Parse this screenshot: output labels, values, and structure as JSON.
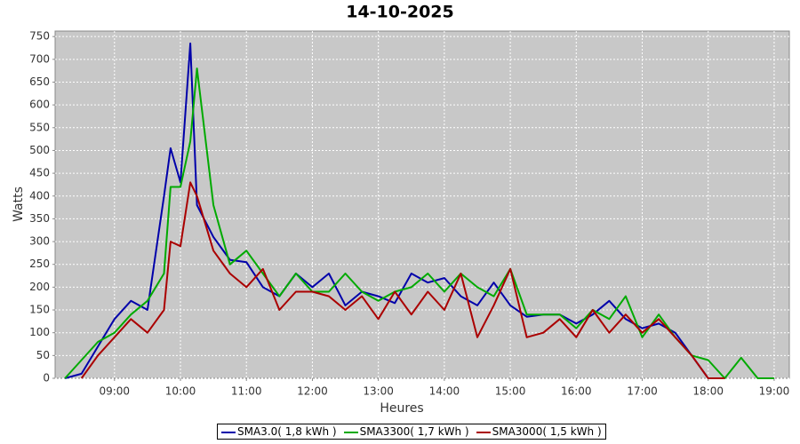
{
  "chart_data": {
    "type": "line",
    "title": "14-10-2025",
    "x_label": "Heures",
    "y_label": "Watts",
    "x": [
      8.25,
      8.5,
      8.75,
      9.0,
      9.25,
      9.5,
      9.75,
      9.85,
      10.0,
      10.15,
      10.25,
      10.5,
      10.75,
      11.0,
      11.25,
      11.5,
      11.75,
      12.0,
      12.25,
      12.5,
      12.75,
      13.0,
      13.25,
      13.5,
      13.75,
      14.0,
      14.25,
      14.5,
      14.75,
      15.0,
      15.25,
      15.5,
      15.75,
      16.0,
      16.25,
      16.5,
      16.75,
      17.0,
      17.25,
      17.5,
      17.75,
      18.0,
      18.25,
      18.5,
      18.75,
      19.0
    ],
    "series": [
      {
        "name": "SMA3.0( 1,8 kWh )",
        "color": "#0000aa",
        "values": [
          0,
          10,
          70,
          130,
          170,
          150,
          400,
          505,
          430,
          735,
          380,
          310,
          260,
          255,
          200,
          180,
          230,
          200,
          230,
          160,
          190,
          180,
          165,
          230,
          210,
          220,
          180,
          160,
          210,
          160,
          135,
          140,
          140,
          120,
          140,
          170,
          130,
          110,
          120,
          100,
          50,
          0,
          null,
          null,
          null,
          null
        ]
      },
      {
        "name": "SMA3300( 1,7 kWh )",
        "color": "#00aa00",
        "values": [
          0,
          40,
          80,
          100,
          140,
          170,
          230,
          420,
          420,
          520,
          680,
          380,
          250,
          280,
          230,
          180,
          230,
          190,
          190,
          230,
          190,
          170,
          190,
          200,
          230,
          190,
          230,
          200,
          180,
          240,
          140,
          140,
          140,
          110,
          150,
          130,
          180,
          90,
          140,
          90,
          50,
          40,
          0,
          45,
          0,
          0
        ]
      },
      {
        "name": "SMA3000( 1,5 kWh )",
        "color": "#aa0000",
        "values": [
          null,
          0,
          50,
          90,
          130,
          100,
          150,
          300,
          290,
          430,
          400,
          280,
          230,
          200,
          240,
          150,
          190,
          190,
          180,
          150,
          180,
          130,
          190,
          140,
          190,
          150,
          230,
          90,
          160,
          240,
          90,
          100,
          130,
          90,
          150,
          100,
          140,
          100,
          130,
          90,
          50,
          0,
          0,
          null,
          null,
          null
        ]
      }
    ],
    "xlim": [
      8.1,
      19.23
    ],
    "ylim": [
      0,
      762
    ],
    "xticks": [
      {
        "value": 9,
        "label": "09:00"
      },
      {
        "value": 10,
        "label": "10:00"
      },
      {
        "value": 11,
        "label": "11:00"
      },
      {
        "value": 12,
        "label": "12:00"
      },
      {
        "value": 13,
        "label": "13:00"
      },
      {
        "value": 14,
        "label": "14:00"
      },
      {
        "value": 15,
        "label": "15:00"
      },
      {
        "value": 16,
        "label": "16:00"
      },
      {
        "value": 17,
        "label": "17:00"
      },
      {
        "value": 18,
        "label": "18:00"
      },
      {
        "value": 19,
        "label": "19:00"
      }
    ],
    "yticks": [
      0,
      50,
      100,
      150,
      200,
      250,
      300,
      350,
      400,
      450,
      500,
      550,
      600,
      650,
      700,
      750
    ],
    "grid": true,
    "legend": "bottom",
    "background": "#c8c8c8"
  }
}
